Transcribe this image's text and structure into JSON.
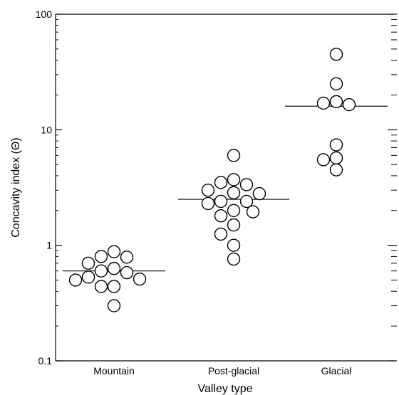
{
  "chart_data": {
    "type": "scatter",
    "xlabel": "Valley type",
    "ylabel": "Concavity index (Θ)",
    "yscale": "log",
    "ylim": [
      0.1,
      100
    ],
    "y_ticks": [
      {
        "value": 0.1,
        "label": "0.1"
      },
      {
        "value": 1,
        "label": "1"
      },
      {
        "value": 10,
        "label": "10"
      },
      {
        "value": 100,
        "label": "100"
      }
    ],
    "categories": [
      "Mountain",
      "Post-glacial",
      "Glacial"
    ],
    "series": [
      {
        "category": "Mountain",
        "median": 0.6,
        "points": [
          0.63,
          0.58,
          0.8,
          0.7,
          0.79,
          0.88,
          0.51,
          0.5,
          0.53,
          0.6,
          0.44,
          0.44,
          0.3
        ]
      },
      {
        "category": "Post-glacial",
        "median": 2.5,
        "points": [
          6.0,
          3.5,
          3.0,
          2.85,
          3.35,
          3.7,
          2.4,
          2.3,
          2.4,
          2.8,
          1.8,
          1.95,
          2.0,
          1.25,
          1.5,
          1.0,
          0.76
        ]
      },
      {
        "category": "Glacial",
        "median": 16,
        "points": [
          45,
          25,
          17,
          16.5,
          17.5,
          7.4,
          5.5,
          5.7,
          4.5
        ]
      }
    ]
  }
}
